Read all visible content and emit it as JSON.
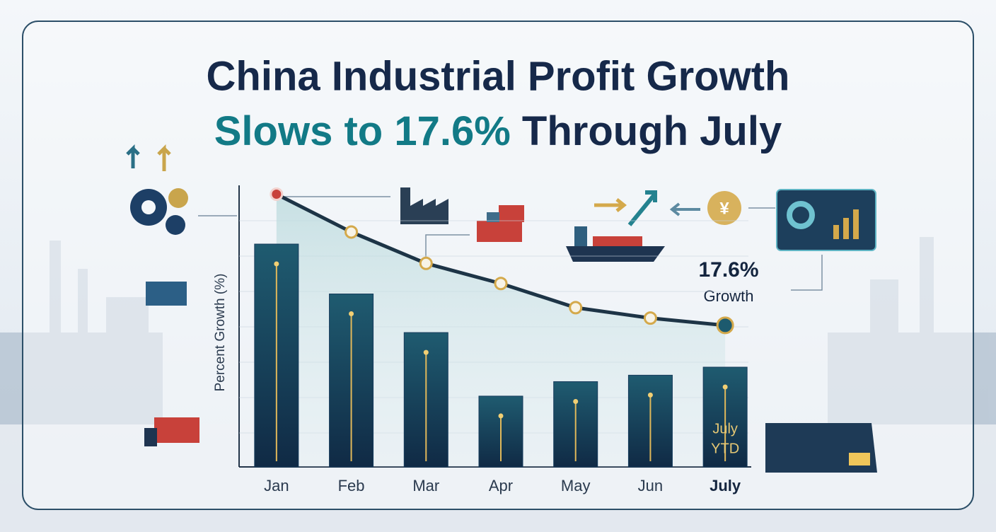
{
  "chart_data": {
    "type": "combo",
    "title": {
      "line1": "China Industrial Profit Growth",
      "line2_highlight": "Slows to 17.6%",
      "line2_rest": "Through July"
    },
    "y_label": "Percent Growth (%)",
    "categories": [
      "Jan",
      "Feb",
      "Mar",
      "Apr",
      "May",
      "Jun",
      "July"
    ],
    "series": [
      {
        "type": "bar",
        "color": "#163b5c",
        "values": [
          27.7,
          21.5,
          16.7,
          8.8,
          10.6,
          11.4,
          12.4
        ]
      },
      {
        "type": "line",
        "color": "#1d3446",
        "values": [
          33.9,
          29.2,
          25.3,
          22.8,
          19.8,
          18.5,
          17.6
        ]
      }
    ],
    "bar_note": [
      "July",
      "YTD"
    ],
    "callout": {
      "value": "17.6%",
      "label": "Growth"
    },
    "ylim": [
      0,
      35
    ]
  }
}
